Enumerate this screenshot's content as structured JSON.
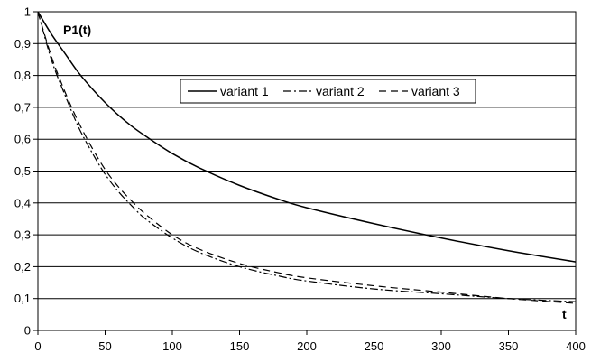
{
  "chart_data": {
    "type": "line",
    "title": "",
    "xlabel": "t",
    "ylabel": "P1(t)",
    "xlim": [
      0,
      400
    ],
    "ylim": [
      0,
      1
    ],
    "x_ticks": [
      "0",
      "50",
      "100",
      "150",
      "200",
      "250",
      "300",
      "350",
      "400"
    ],
    "y_ticks": [
      "0",
      "0,1",
      "0,2",
      "0,3",
      "0,4",
      "0,5",
      "0,6",
      "0,7",
      "0,8",
      "0,9",
      "1"
    ],
    "grid": "horizontal",
    "legend_placement": "upper-center",
    "x": [
      0,
      10,
      20,
      30,
      40,
      50,
      60,
      70,
      80,
      100,
      120,
      150,
      180,
      200,
      250,
      300,
      350,
      400
    ],
    "series": [
      {
        "name": "variant 1",
        "line_style": "solid",
        "color": "#000000",
        "values": [
          1.0,
          0.93,
          0.87,
          0.81,
          0.76,
          0.715,
          0.675,
          0.64,
          0.61,
          0.555,
          0.51,
          0.455,
          0.41,
          0.385,
          0.335,
          0.29,
          0.25,
          0.215
        ]
      },
      {
        "name": "variant 2",
        "line_style": "dash-dot",
        "color": "#000000",
        "values": [
          1.0,
          0.85,
          0.74,
          0.64,
          0.56,
          0.49,
          0.435,
          0.39,
          0.35,
          0.29,
          0.245,
          0.2,
          0.17,
          0.155,
          0.13,
          0.115,
          0.1,
          0.09
        ]
      },
      {
        "name": "variant 3",
        "line_style": "dashed",
        "color": "#000000",
        "values": [
          1.0,
          0.86,
          0.75,
          0.655,
          0.575,
          0.505,
          0.45,
          0.405,
          0.365,
          0.3,
          0.255,
          0.21,
          0.18,
          0.165,
          0.14,
          0.12,
          0.1,
          0.085
        ]
      }
    ]
  }
}
